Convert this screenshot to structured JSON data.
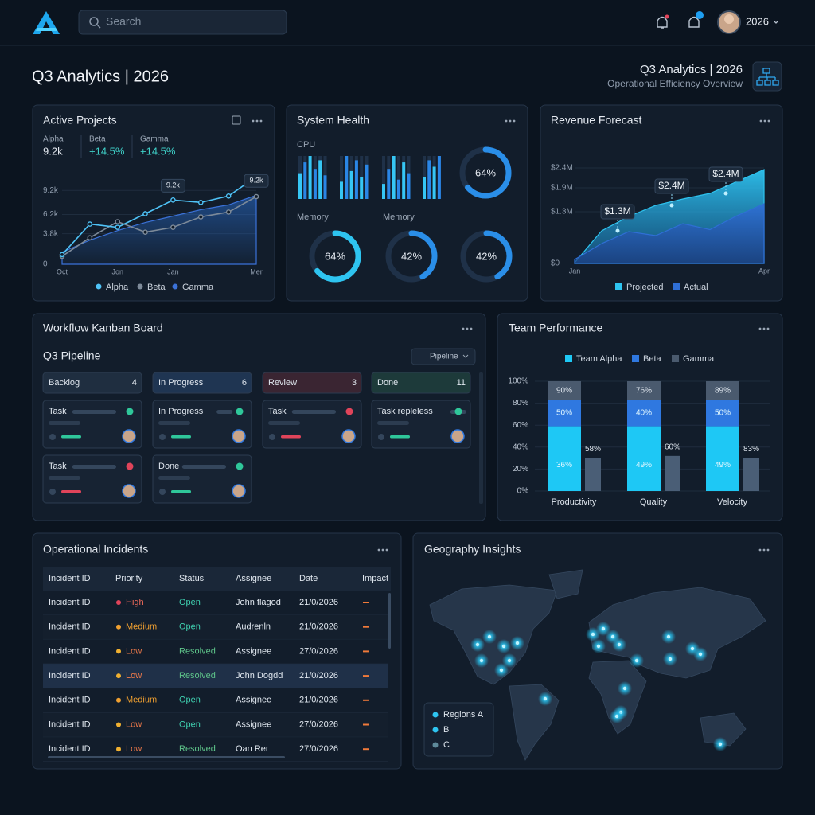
{
  "header": {
    "search_placeholder": "Search",
    "user": "2026"
  },
  "page": {
    "title": "Q3 Analytics | 2026",
    "right_title": "Q3 Analytics | 2026",
    "subtitle": "Operational Efficiency Overview"
  },
  "active_projects": {
    "title": "Active Projects",
    "stats": [
      {
        "label": "Alpha",
        "value": "9.2k"
      },
      {
        "label": "Beta",
        "value": "+14.5%"
      },
      {
        "label": "Gamma",
        "value": "+14.5%"
      }
    ],
    "chart": {
      "type": "line",
      "categories": [
        "Oct",
        null,
        "Jon",
        null,
        "Jan",
        null,
        null,
        "Mer"
      ],
      "series": [
        {
          "name": "Alpha",
          "color": "#4fc3f7",
          "values": [
            1200,
            5000,
            4600,
            6300,
            8000,
            7700,
            8500,
            10900
          ]
        },
        {
          "name": "Beta",
          "color": "#7d8a99",
          "values": [
            1000,
            3300,
            5300,
            4000,
            4600,
            5900,
            6500,
            8430
          ]
        },
        {
          "name": "Gamma",
          "color": "#3b72d9",
          "values": [
            1500,
            3000,
            4200,
            5200,
            6000,
            6800,
            7400,
            8600
          ]
        }
      ],
      "ylim": [
        0,
        12000
      ],
      "yticks": [
        0,
        {
          "value": 3800,
          "label": "3.8k"
        },
        {
          "value": 6200,
          "label": "6.2k"
        },
        {
          "value": 9200,
          "label": "9.2k"
        }
      ],
      "annotations": [
        "9.2k",
        "9.2k"
      ]
    }
  },
  "system_health": {
    "title": "System Health",
    "cpu_label": "CPU",
    "memory_labels": [
      "Memory",
      "Memory"
    ],
    "cpu_values": [
      60,
      85,
      100,
      70,
      90,
      55,
      40,
      100,
      65,
      90,
      50,
      80,
      35,
      70,
      100,
      45,
      85,
      60,
      50,
      90,
      75,
      100
    ],
    "gauges": [
      {
        "value": 64,
        "value_label": "64%"
      },
      {
        "value": 64,
        "value_label": "64%"
      },
      {
        "value": 42,
        "value_label": "42%"
      },
      {
        "value": 42,
        "value_label": "42%"
      }
    ]
  },
  "revenue_forecast": {
    "title": "Revenue Forecast",
    "chart": {
      "type": "area",
      "categories": [
        "Jan",
        null,
        null,
        null,
        null,
        null,
        null,
        "Apr"
      ],
      "series": [
        {
          "name": "Projected",
          "color": "#2ec4f0",
          "values": [
            20000,
            820000,
            1180000,
            1460000,
            1620000,
            1760000,
            2060000,
            2360000
          ]
        },
        {
          "name": "Actual",
          "color": "#2f6fd6",
          "values": [
            100000,
            500000,
            800000,
            700000,
            1000000,
            850000,
            1200000,
            1500000
          ]
        }
      ],
      "ylim": [
        0,
        2400000
      ],
      "yticks": [
        {
          "value": 0,
          "label": "$0"
        },
        {
          "value": 1300000,
          "label": "$1.3M"
        },
        {
          "value": 1900000,
          "label": "$1.9M"
        },
        {
          "value": 2400000,
          "label": "$2.4M"
        }
      ],
      "annotations": [
        "$1.3M",
        "$2.4M",
        "$2.4M"
      ]
    }
  },
  "kanban": {
    "title": "Workflow Kanban Board",
    "subtitle": "Q3 Pipeline",
    "filter": "Pipeline",
    "columns": [
      {
        "name": "Backlog",
        "count": "4",
        "cards": [
          {
            "title": "Task",
            "status": "green"
          },
          {
            "title": "Task",
            "status": "red"
          }
        ]
      },
      {
        "name": "In Progress",
        "count": "6",
        "cards": [
          {
            "title": "In Progress",
            "status": "green"
          },
          {
            "title": "Done",
            "status": "green"
          }
        ]
      },
      {
        "name": "Review",
        "count": "3",
        "cards": [
          {
            "title": "Task",
            "status": "red"
          }
        ]
      },
      {
        "name": "Done",
        "count": "11",
        "cards": [
          {
            "title": "Task repleless",
            "status": "green"
          }
        ]
      }
    ]
  },
  "team_performance": {
    "title": "Team Performance",
    "chart": {
      "type": "stacked-bar",
      "categories": [
        "Productivity",
        "Quality",
        "Velocity"
      ],
      "series": [
        {
          "name": "Team Alpha",
          "color": "#1ec8f5",
          "values": [
            59,
            59,
            59
          ]
        },
        {
          "name": "Beta",
          "color": "#2f78e0",
          "values": [
            24,
            24,
            24
          ]
        },
        {
          "name": "Gamma",
          "color": "#4a5a6e",
          "values": [
            17,
            17,
            17
          ]
        }
      ],
      "side_values": [
        30,
        32,
        30
      ],
      "segment_labels": [
        [
          "36%",
          "50%",
          "90%",
          "58%"
        ],
        [
          "49%",
          "40%",
          "76%",
          "60%"
        ],
        [
          "49%",
          "50%",
          "89%",
          "83%"
        ]
      ],
      "ylim": [
        0,
        100
      ],
      "yticks": [
        {
          "value": 0,
          "label": "0%"
        },
        {
          "value": 20,
          "label": "20%"
        },
        {
          "value": 40,
          "label": "40%"
        },
        {
          "value": 60,
          "label": "60%"
        },
        {
          "value": 80,
          "label": "80%"
        },
        {
          "value": 100,
          "label": "100%"
        }
      ]
    }
  },
  "incidents": {
    "title": "Operational Incidents",
    "table": {
      "columns": [
        "Incident ID",
        "Priority",
        "Status",
        "Assignee",
        "Date",
        "Impact"
      ],
      "rows": [
        [
          "Incident ID",
          "High",
          "Open",
          "John flagod",
          "21/0/2026"
        ],
        [
          "Incident ID",
          "Medium",
          "Open",
          "Audrenln",
          "21/0/2026"
        ],
        [
          "Incident ID",
          "Low",
          "Resolved",
          "Assignee",
          "27/0/2026"
        ],
        [
          "Incident ID",
          "Low",
          "Resolved",
          "John Dogdd",
          "21/0/2026"
        ],
        [
          "Incident ID",
          "Medium",
          "Open",
          "Assignee",
          "21/0/2026"
        ],
        [
          "Incident ID",
          "Low",
          "Open",
          "Assignee",
          "27/0/2026"
        ],
        [
          "Incident ID",
          "Low",
          "Resolved",
          "Oan Rer",
          "27/0/2026"
        ]
      ]
    }
  },
  "geography": {
    "title": "Geography Insights",
    "legend": [
      "Regions A",
      "B",
      "C"
    ]
  }
}
